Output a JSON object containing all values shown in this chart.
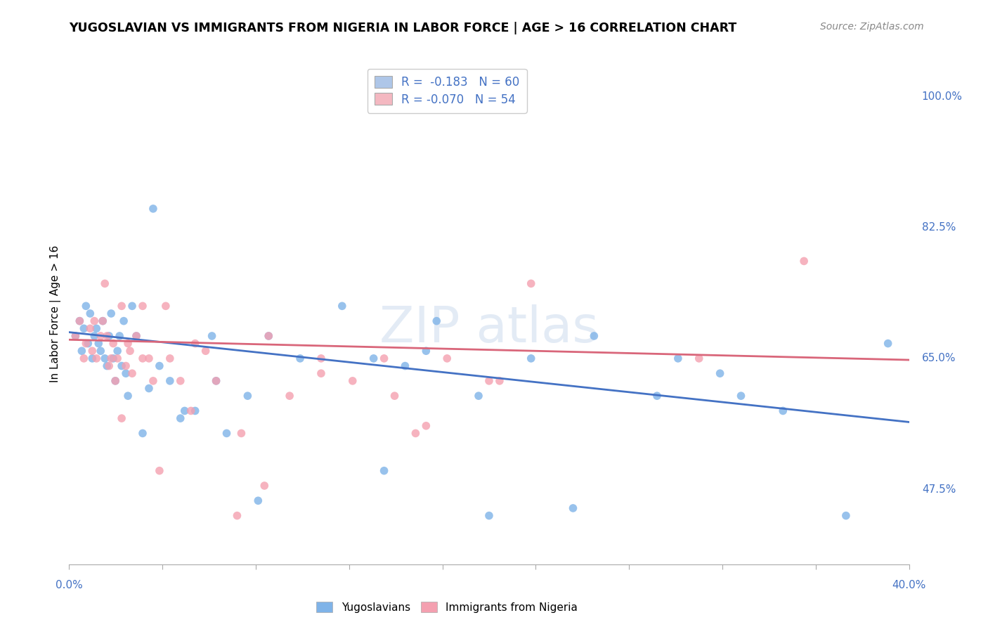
{
  "title": "YUGOSLAVIAN VS IMMIGRANTS FROM NIGERIA IN LABOR FORCE | AGE > 16 CORRELATION CHART",
  "source": "Source: ZipAtlas.com",
  "ylabel": "In Labor Force | Age > 16",
  "xmin": 0.0,
  "xmax": 0.4,
  "ymin": 0.375,
  "ymax": 1.045,
  "ytick_values": [
    0.475,
    0.65,
    0.825,
    1.0
  ],
  "ytick_labels": [
    "47.5%",
    "65.0%",
    "82.5%",
    "100.0%"
  ],
  "legend_blue_label": "R =  -0.183   N = 60",
  "legend_pink_label": "R = -0.070   N = 54",
  "legend_blue_color": "#aec6e8",
  "legend_pink_color": "#f4b8c1",
  "blue_scatter_color": "#7fb3e8",
  "pink_scatter_color": "#f4a0b0",
  "blue_line_color": "#4472c4",
  "pink_line_color": "#d9667a",
  "watermark": "ZIPAtlas",
  "blue_line_x": [
    0.0,
    0.4
  ],
  "blue_line_y": [
    0.685,
    0.565
  ],
  "pink_line_x": [
    0.0,
    0.4
  ],
  "pink_line_y": [
    0.675,
    0.648
  ],
  "blue_points_x": [
    0.003,
    0.005,
    0.006,
    0.007,
    0.008,
    0.009,
    0.01,
    0.011,
    0.012,
    0.013,
    0.014,
    0.015,
    0.016,
    0.017,
    0.018,
    0.019,
    0.02,
    0.021,
    0.022,
    0.023,
    0.024,
    0.025,
    0.026,
    0.027,
    0.028,
    0.03,
    0.032,
    0.035,
    0.038,
    0.04,
    0.043,
    0.048,
    0.053,
    0.06,
    0.068,
    0.075,
    0.085,
    0.095,
    0.11,
    0.13,
    0.15,
    0.17,
    0.195,
    0.22,
    0.25,
    0.28,
    0.31,
    0.34,
    0.37,
    0.39,
    0.145,
    0.24,
    0.175,
    0.09,
    0.055,
    0.07,
    0.29,
    0.32,
    0.2,
    0.16
  ],
  "blue_points_y": [
    0.68,
    0.7,
    0.66,
    0.69,
    0.72,
    0.67,
    0.71,
    0.65,
    0.68,
    0.69,
    0.67,
    0.66,
    0.7,
    0.65,
    0.64,
    0.68,
    0.71,
    0.65,
    0.62,
    0.66,
    0.68,
    0.64,
    0.7,
    0.63,
    0.6,
    0.72,
    0.68,
    0.55,
    0.61,
    0.85,
    0.64,
    0.62,
    0.57,
    0.58,
    0.68,
    0.55,
    0.6,
    0.68,
    0.65,
    0.72,
    0.5,
    0.66,
    0.6,
    0.65,
    0.68,
    0.6,
    0.63,
    0.58,
    0.44,
    0.67,
    0.65,
    0.45,
    0.7,
    0.46,
    0.58,
    0.62,
    0.65,
    0.6,
    0.44,
    0.64
  ],
  "pink_points_x": [
    0.003,
    0.005,
    0.007,
    0.008,
    0.01,
    0.011,
    0.012,
    0.013,
    0.015,
    0.016,
    0.017,
    0.018,
    0.019,
    0.02,
    0.021,
    0.022,
    0.023,
    0.025,
    0.027,
    0.029,
    0.032,
    0.035,
    0.04,
    0.046,
    0.053,
    0.06,
    0.07,
    0.082,
    0.093,
    0.105,
    0.12,
    0.135,
    0.15,
    0.165,
    0.18,
    0.2,
    0.22,
    0.12,
    0.095,
    0.048,
    0.058,
    0.043,
    0.155,
    0.205,
    0.35,
    0.3,
    0.065,
    0.038,
    0.028,
    0.17,
    0.025,
    0.03,
    0.035,
    0.08
  ],
  "pink_points_y": [
    0.68,
    0.7,
    0.65,
    0.67,
    0.69,
    0.66,
    0.7,
    0.65,
    0.68,
    0.7,
    0.75,
    0.68,
    0.64,
    0.65,
    0.67,
    0.62,
    0.65,
    0.72,
    0.64,
    0.66,
    0.68,
    0.65,
    0.62,
    0.72,
    0.62,
    0.67,
    0.62,
    0.55,
    0.48,
    0.6,
    0.65,
    0.62,
    0.65,
    0.55,
    0.65,
    0.62,
    0.75,
    0.63,
    0.68,
    0.65,
    0.58,
    0.5,
    0.6,
    0.62,
    0.78,
    0.65,
    0.66,
    0.65,
    0.67,
    0.56,
    0.57,
    0.63,
    0.72,
    0.44
  ]
}
